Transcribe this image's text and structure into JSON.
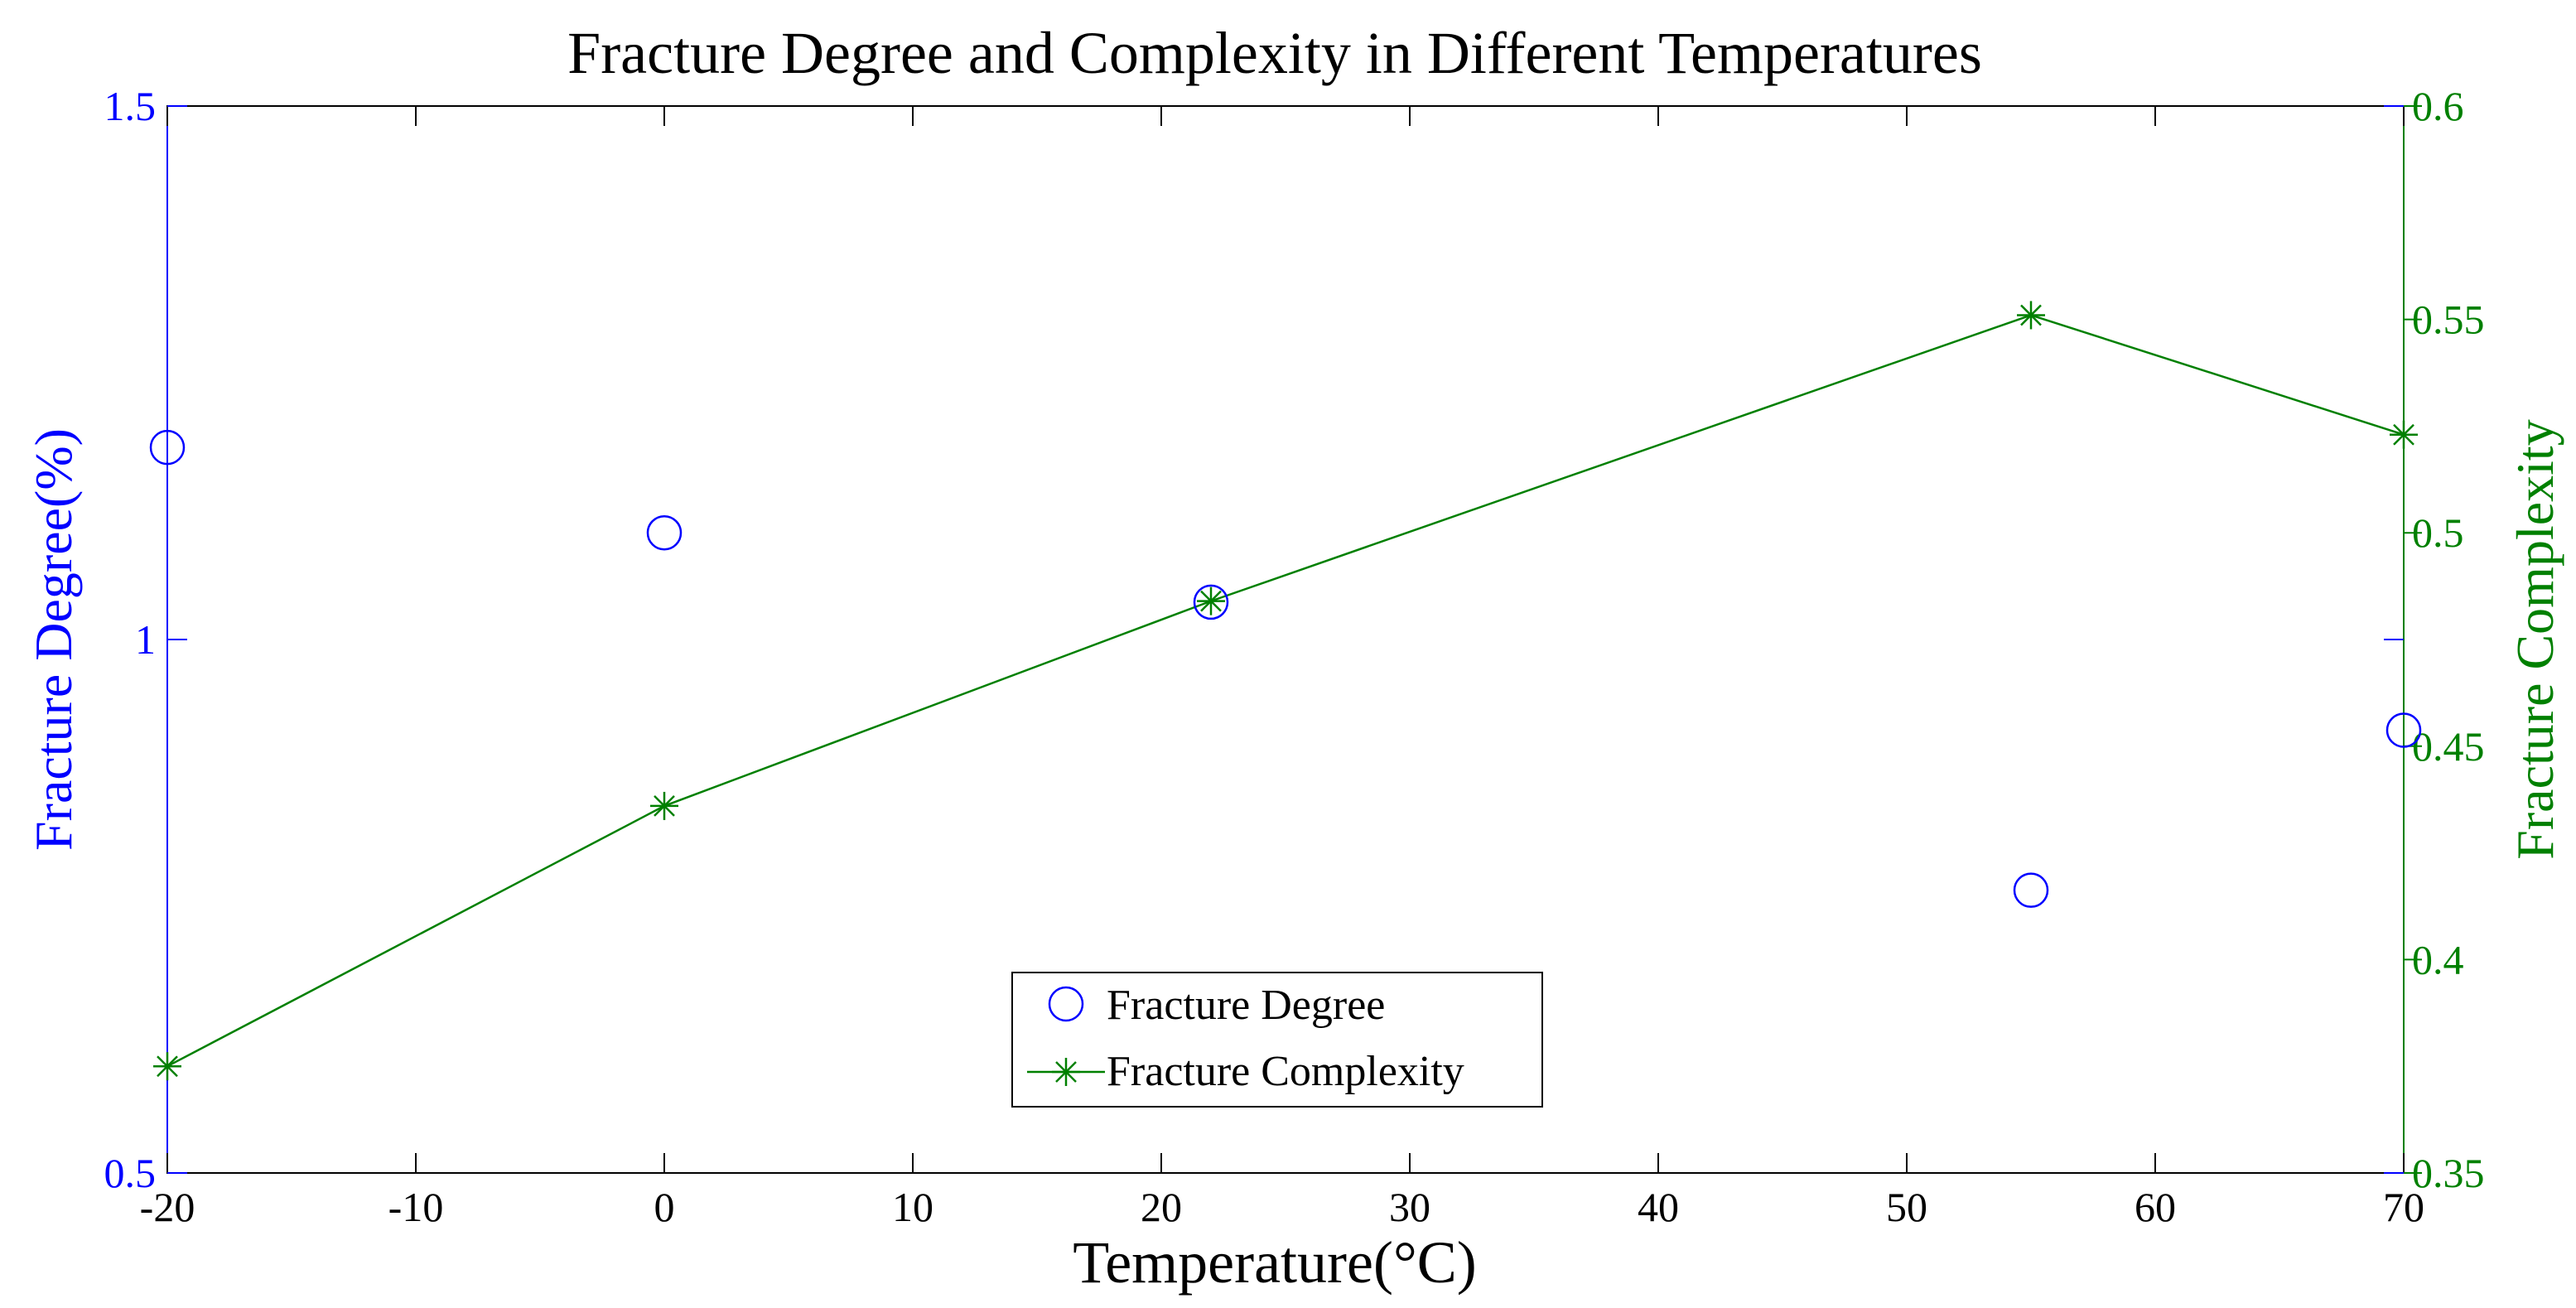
{
  "colors": {
    "left_axis": "#0000ff",
    "right_axis": "#008000",
    "frame": "#000000",
    "background": "#ffffff"
  },
  "chart_data": {
    "type": "line",
    "title": "Fracture Degree and Complexity in Different Temperatures",
    "xlabel": "Temperature(°C)",
    "ylabel_left": "Fracture Degree(%)",
    "ylabel_right": "Fracture Complexity",
    "x": [
      -20,
      0,
      22,
      55,
      70
    ],
    "xlim": [
      -20,
      70
    ],
    "ylim_left": [
      0.5,
      1.5
    ],
    "ylim_right": [
      0.35,
      0.6
    ],
    "x_ticks": [
      "-20",
      "-10",
      "0",
      "10",
      "20",
      "30",
      "40",
      "50",
      "60",
      "70"
    ],
    "y_ticks_left": [
      "0.5",
      "1",
      "1.5"
    ],
    "y_ticks_right": [
      "0.35",
      "0.4",
      "0.45",
      "0.5",
      "0.55",
      "0.6"
    ],
    "grid": false,
    "legend_position": "bottom-center",
    "series": [
      {
        "name": "Fracture Degree",
        "axis": "left",
        "marker": "circle",
        "line": false,
        "values": [
          1.18,
          1.1,
          1.035,
          0.765,
          0.915
        ]
      },
      {
        "name": "Fracture Complexity",
        "axis": "right",
        "marker": "star",
        "line": true,
        "values": [
          0.375,
          0.436,
          0.484,
          0.551,
          0.523
        ]
      }
    ]
  }
}
